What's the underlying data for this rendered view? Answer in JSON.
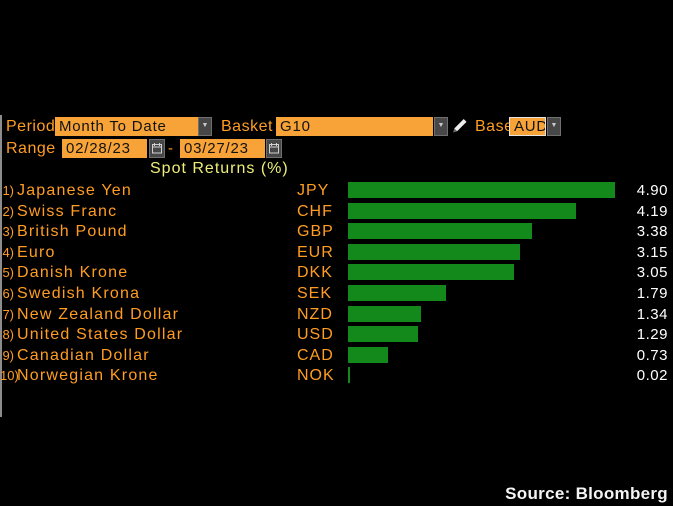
{
  "controls": {
    "period": {
      "label": "Period",
      "value": "Month To Date"
    },
    "basket": {
      "label": "Basket",
      "value": "G10"
    },
    "base": {
      "label": "Base",
      "value": "AUD"
    },
    "range": {
      "label": "Range",
      "start_date": "02/28/23",
      "separator": "-",
      "end_date": "03/27/23"
    }
  },
  "chart_data": {
    "type": "bar",
    "orientation": "horizontal",
    "title": "Spot Returns (%)",
    "xlim": [
      0,
      4.9
    ],
    "grid": false,
    "legend": false,
    "ranks": [
      "1)",
      "2)",
      "3)",
      "4)",
      "5)",
      "6)",
      "7)",
      "8)",
      "9)",
      "10)"
    ],
    "categories": [
      "Japanese Yen",
      "Swiss Franc",
      "British Pound",
      "Euro",
      "Danish Krone",
      "Swedish Krona",
      "New Zealand Dollar",
      "United States Dollar",
      "Canadian Dollar",
      "Norwegian Krone"
    ],
    "codes": [
      "JPY",
      "CHF",
      "GBP",
      "EUR",
      "DKK",
      "SEK",
      "NZD",
      "USD",
      "CAD",
      "NOK"
    ],
    "values": [
      4.9,
      4.19,
      3.38,
      3.15,
      3.05,
      1.79,
      1.34,
      1.29,
      0.73,
      0.02
    ],
    "value_labels": [
      "4.90",
      "4.19",
      "3.38",
      "3.15",
      "3.05",
      "1.79",
      "1.34",
      "1.29",
      "0.73",
      "0.02"
    ],
    "bar_color": "#12891a"
  },
  "footer": {
    "source_label": "Source: Bloomberg"
  },
  "colors": {
    "background": "#000000",
    "accent_orange_text": "#ff9d23",
    "input_orange_bg": "#f7a338",
    "bar_green": "#12891a",
    "title_yellow": "#eeee78",
    "value_white": "#ffffff",
    "button_gray": "#474747"
  }
}
